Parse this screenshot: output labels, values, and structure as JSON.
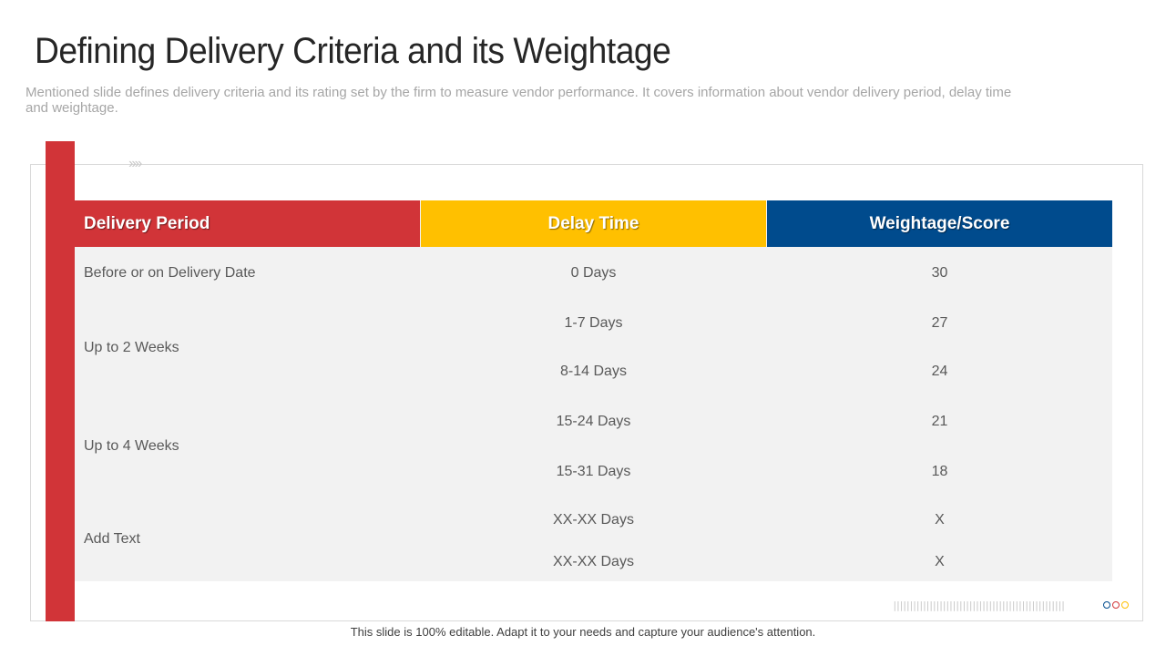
{
  "title": "Defining Delivery Criteria and its Weightage",
  "subtitle": "Mentioned slide defines delivery criteria and its rating set by the firm to measure vendor performance. It covers information about vendor delivery period, delay time and weightage.",
  "decor": {
    "chevrons": "››››",
    "ticks": "||||||||||||||||||||||||||||||||||||||||||||||||||||"
  },
  "table": {
    "headers": [
      "Delivery Period",
      "Delay Time",
      "Weightage/Score"
    ],
    "header_colors": [
      "#d13438",
      "#ffc000",
      "#004b8d"
    ],
    "periods": [
      "Before or on Delivery Date",
      "Up to 2 Weeks",
      "Up to 4 Weeks",
      "Add Text"
    ],
    "rows": [
      {
        "delay": "0 Days",
        "score": "30"
      },
      {
        "delay": "1-7 Days",
        "score": "27"
      },
      {
        "delay": "8-14 Days",
        "score": "24"
      },
      {
        "delay": "15-24 Days",
        "score": "21"
      },
      {
        "delay": "15-31 Days",
        "score": "18"
      },
      {
        "delay": "XX-XX Days",
        "score": "X"
      },
      {
        "delay": "XX-XX Days",
        "score": "X"
      }
    ]
  },
  "dot_colors": [
    "#004b8d",
    "#d13438",
    "#ffc000"
  ],
  "footer": "This slide is 100% editable. Adapt it to your needs and capture your audience's attention."
}
